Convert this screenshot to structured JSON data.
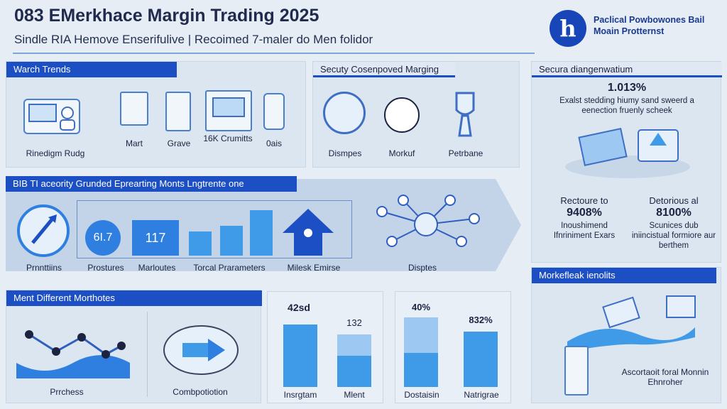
{
  "header": {
    "title": "083 EMerkhace Margin Trading 2025",
    "subtitle": "Sindle RIA Hemove Enserifulive | Recoimed 7-maler do Men folidor"
  },
  "brand": {
    "logo_letter": "h",
    "text": "Paclical Powbowones Bail Moain Protternst"
  },
  "sections": {
    "watch_trends": {
      "title": "Warch Trends",
      "items": [
        "Rinedigm Rudg",
        "Mart",
        "Grave",
        "16K Crumitts",
        "0ais"
      ]
    },
    "security": {
      "title": "Secuty Cosenpoved Marging",
      "items": [
        "Dismpes",
        "Morkuf",
        "Petrbane"
      ]
    },
    "security_diag": {
      "title": "Secura diangenwatium",
      "stat": "1.013%",
      "desc": "Exalst stedding hiumy sand sweerd a eenection fruenly scheek",
      "left_title": "Rectoure to",
      "left_stat": "9408%",
      "left_desc": "Inoushimend Ifnriniment Exars",
      "right_title": "Detorious al",
      "right_stat": "8100%",
      "right_desc": "Scunices dub iniincistual formiore aur berthem"
    },
    "security_grounded": {
      "title": "BIB TI aceority Grunded Eprearting Monts Lngtrente one",
      "stat_a": "6I.7",
      "stat_b": "117",
      "items": [
        "Prnnttiins",
        "Prostures",
        "Marloutes",
        "Torcal Prarameters",
        "Milesk Emirse",
        "Disptes"
      ]
    },
    "marketfeak": {
      "title": "Morkefleak ienolits",
      "caption": "Ascortaoit foral Monnin Ehnroher"
    },
    "different_methods": {
      "title": "Ment Different Morthotes",
      "items": [
        "Prrchess",
        "Combpotiotion"
      ]
    },
    "chart_left": {
      "label_a": "42sd",
      "label_b": "132",
      "cat_a": "Insrgtam",
      "cat_b": "Mlent"
    },
    "chart_right": {
      "label_a": "40%",
      "label_b": "832%",
      "cat_a": "Dostaisin",
      "cat_b": "Natrigrae"
    }
  },
  "colors": {
    "accent": "#1d4fc4",
    "bar": "#3f9ae8",
    "bar_light": "#9cc8f2",
    "panel": "#dbe6f1"
  }
}
